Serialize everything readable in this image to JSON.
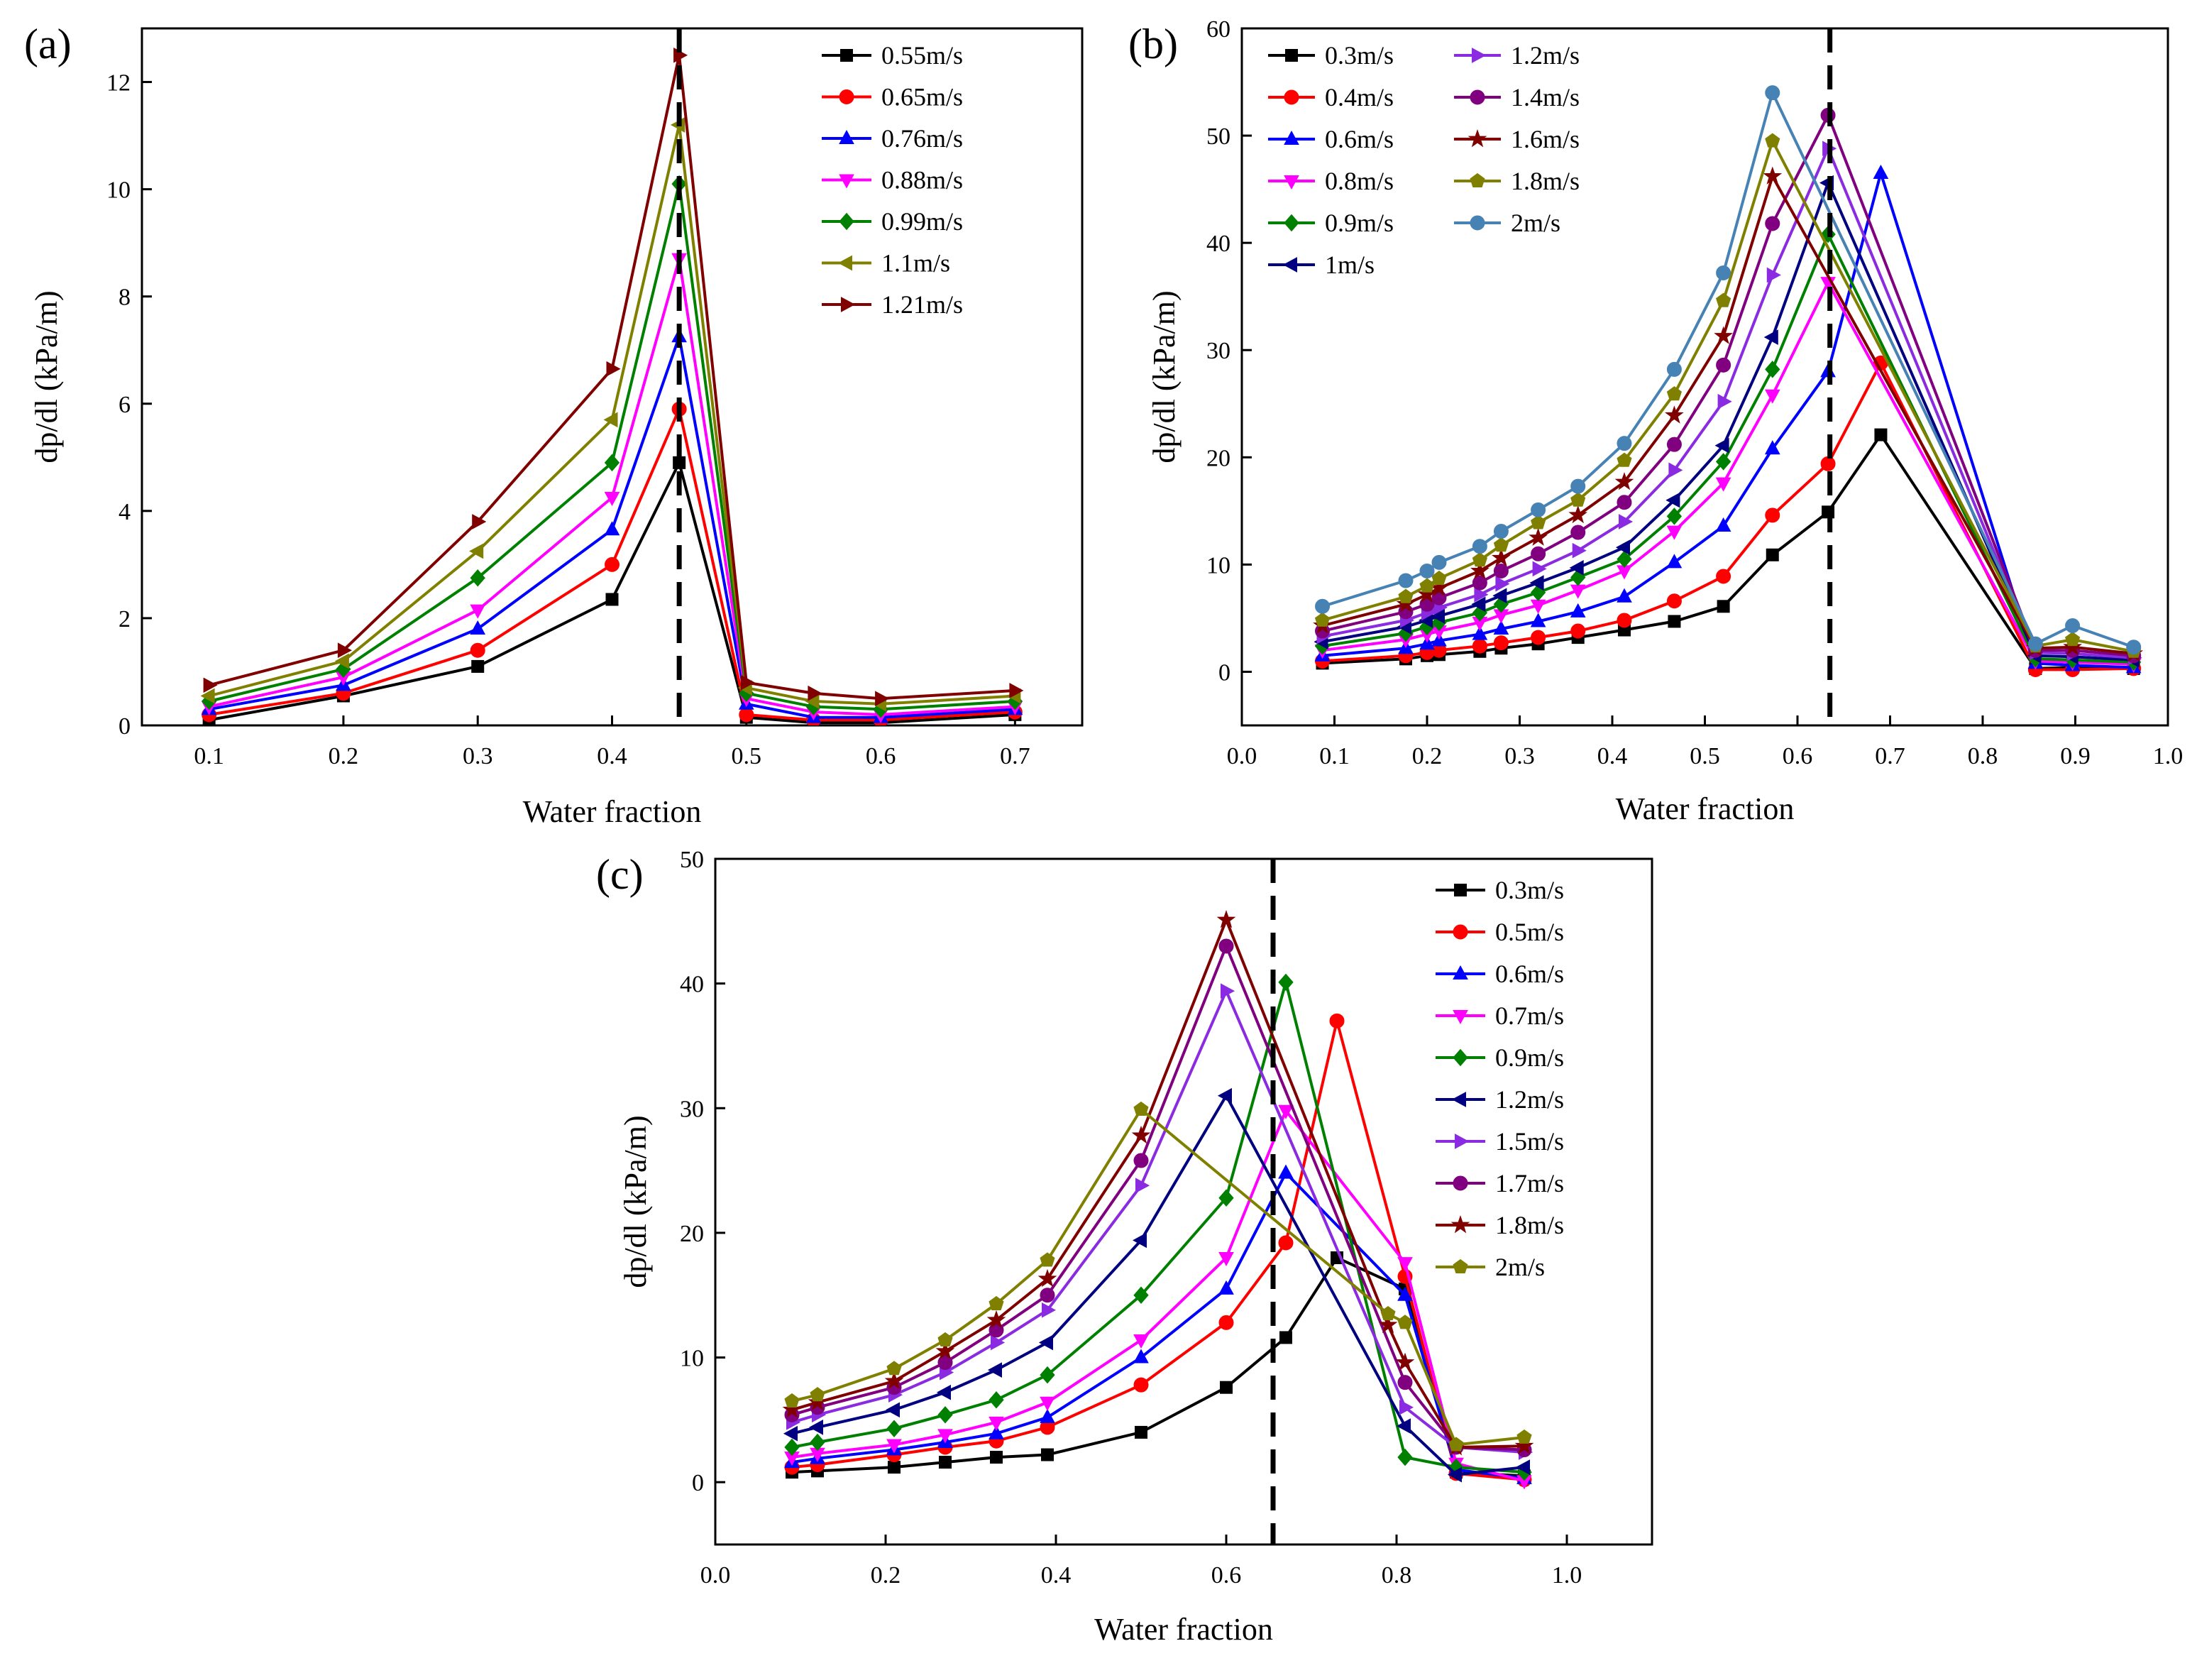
{
  "chart_data": [
    {
      "panel_label": "(a)",
      "type": "line",
      "xlabel": "Water fraction",
      "ylabel": "dp/dl (kPa/m)",
      "xlim": [
        0.05,
        0.75
      ],
      "ylim": [
        0,
        13
      ],
      "xticks": [
        0.1,
        0.2,
        0.3,
        0.4,
        0.5,
        0.6,
        0.7
      ],
      "xtick_labels": [
        "0.1",
        "0.2",
        "0.3",
        "0.4",
        "0.5",
        "0.6",
        "0.7"
      ],
      "yticks": [
        0,
        2,
        4,
        6,
        8,
        10,
        12
      ],
      "ytick_labels": [
        "0",
        "2",
        "4",
        "6",
        "8",
        "10",
        "12"
      ],
      "vline_x": 0.45,
      "legend_position": "top-right",
      "x": [
        0.1,
        0.2,
        0.3,
        0.4,
        0.45,
        0.5,
        0.55,
        0.6,
        0.7
      ],
      "series": [
        {
          "name": "0.55m/s",
          "color": "#000000",
          "marker": "square",
          "values": [
            0.1,
            0.55,
            1.1,
            2.35,
            4.9,
            0.15,
            0.05,
            0.05,
            0.2
          ]
        },
        {
          "name": "0.65m/s",
          "color": "#ff0000",
          "marker": "circle",
          "values": [
            0.2,
            0.6,
            1.4,
            3.0,
            5.9,
            0.2,
            0.1,
            0.1,
            0.25
          ]
        },
        {
          "name": "0.76m/s",
          "color": "#0000ff",
          "marker": "triangle-up",
          "values": [
            0.3,
            0.75,
            1.8,
            3.65,
            7.25,
            0.4,
            0.15,
            0.15,
            0.3
          ]
        },
        {
          "name": "0.88m/s",
          "color": "#ff00ff",
          "marker": "triangle-down",
          "values": [
            0.35,
            0.9,
            2.15,
            4.25,
            8.7,
            0.5,
            0.25,
            0.2,
            0.35
          ]
        },
        {
          "name": "0.99m/s",
          "color": "#008000",
          "marker": "diamond",
          "values": [
            0.45,
            1.05,
            2.75,
            4.9,
            10.1,
            0.6,
            0.35,
            0.3,
            0.45
          ]
        },
        {
          "name": "1.1m/s",
          "color": "#808000",
          "marker": "triangle-left",
          "values": [
            0.55,
            1.2,
            3.25,
            5.7,
            11.2,
            0.7,
            0.45,
            0.4,
            0.55
          ]
        },
        {
          "name": "1.21m/s",
          "color": "#800000",
          "marker": "triangle-right",
          "values": [
            0.75,
            1.4,
            3.8,
            6.65,
            12.5,
            0.8,
            0.6,
            0.5,
            0.65
          ]
        }
      ]
    },
    {
      "panel_label": "(b)",
      "type": "line",
      "xlabel": "Water fraction",
      "ylabel": "dp/dl (kPa/m)",
      "xlim": [
        0.0,
        1.0
      ],
      "ylim": [
        -5,
        60
      ],
      "xticks": [
        0.0,
        0.1,
        0.2,
        0.3,
        0.4,
        0.5,
        0.6,
        0.7,
        0.8,
        0.9,
        1.0
      ],
      "xtick_labels": [
        "0.0",
        "0.1",
        "0.2",
        "0.3",
        "0.4",
        "0.5",
        "0.6",
        "0.7",
        "0.8",
        "0.9",
        "1.0"
      ],
      "yticks": [
        0,
        10,
        20,
        30,
        40,
        50,
        60
      ],
      "ytick_labels": [
        "0",
        "10",
        "20",
        "30",
        "40",
        "50",
        "60"
      ],
      "vline_x": 0.635,
      "legend_position": "top-left",
      "series": [
        {
          "name": "0.3m/s",
          "color": "#000000",
          "marker": "square",
          "x": [
            0.087,
            0.177,
            0.2,
            0.213,
            0.257,
            0.28,
            0.32,
            0.363,
            0.413,
            0.467,
            0.52,
            0.573,
            0.633,
            0.69,
            0.857,
            0.897,
            0.963
          ],
          "values": [
            0.8,
            1.2,
            1.5,
            1.6,
            1.9,
            2.2,
            2.6,
            3.2,
            3.9,
            4.7,
            6.1,
            10.9,
            14.9,
            22.1,
            0.3,
            0.4,
            0.3
          ]
        },
        {
          "name": "0.4m/s",
          "color": "#ff0000",
          "marker": "circle",
          "x": [
            0.087,
            0.177,
            0.2,
            0.213,
            0.257,
            0.28,
            0.32,
            0.363,
            0.413,
            0.467,
            0.52,
            0.573,
            0.633,
            0.69,
            0.857,
            0.897,
            0.963
          ],
          "values": [
            1.0,
            1.5,
            1.8,
            2.0,
            2.4,
            2.7,
            3.2,
            3.8,
            4.8,
            6.6,
            8.9,
            14.6,
            19.4,
            28.8,
            0.2,
            0.2,
            0.3
          ]
        },
        {
          "name": "0.6m/s",
          "color": "#0000ff",
          "marker": "triangle-up",
          "x": [
            0.087,
            0.177,
            0.2,
            0.213,
            0.257,
            0.28,
            0.32,
            0.363,
            0.413,
            0.467,
            0.52,
            0.573,
            0.633,
            0.69,
            0.857,
            0.897,
            0.963
          ],
          "values": [
            1.5,
            2.2,
            2.6,
            2.9,
            3.5,
            4.0,
            4.7,
            5.6,
            7.0,
            10.2,
            13.6,
            20.8,
            28.0,
            46.5,
            0.8,
            0.6,
            0.4
          ]
        },
        {
          "name": "0.8m/s",
          "color": "#ff00ff",
          "marker": "triangle-down",
          "x": [
            0.087,
            0.177,
            0.2,
            0.213,
            0.257,
            0.28,
            0.32,
            0.363,
            0.413,
            0.467,
            0.52,
            0.573,
            0.633,
            0.857,
            0.897,
            0.963
          ],
          "values": [
            2.0,
            3.0,
            3.5,
            3.8,
            4.6,
            5.3,
            6.2,
            7.6,
            9.4,
            13.1,
            17.6,
            25.8,
            36.3,
            1.0,
            0.9,
            0.7
          ]
        },
        {
          "name": "0.9m/s",
          "color": "#008000",
          "marker": "diamond",
          "x": [
            0.087,
            0.177,
            0.2,
            0.213,
            0.257,
            0.28,
            0.32,
            0.363,
            0.413,
            0.467,
            0.52,
            0.573,
            0.633,
            0.857,
            0.897,
            0.963
          ],
          "values": [
            2.4,
            3.6,
            4.2,
            4.6,
            5.5,
            6.3,
            7.4,
            8.8,
            10.5,
            14.5,
            19.6,
            28.2,
            40.8,
            1.2,
            1.1,
            0.9
          ]
        },
        {
          "name": "1m/s",
          "color": "#000080",
          "marker": "triangle-left",
          "x": [
            0.087,
            0.177,
            0.2,
            0.213,
            0.257,
            0.28,
            0.32,
            0.363,
            0.413,
            0.467,
            0.52,
            0.573,
            0.633,
            0.857,
            0.897,
            0.963
          ],
          "values": [
            2.8,
            4.2,
            4.8,
            5.2,
            6.3,
            7.1,
            8.3,
            9.7,
            11.6,
            16.0,
            21.1,
            31.2,
            45.6,
            1.5,
            1.4,
            1.1
          ]
        },
        {
          "name": "1.2m/s",
          "color": "#8a2be2",
          "marker": "triangle-right",
          "x": [
            0.087,
            0.177,
            0.2,
            0.213,
            0.257,
            0.28,
            0.32,
            0.363,
            0.413,
            0.467,
            0.52,
            0.573,
            0.633,
            0.857,
            0.897,
            0.963
          ],
          "values": [
            3.3,
            4.8,
            5.5,
            6.0,
            7.2,
            8.2,
            9.6,
            11.3,
            14.0,
            18.8,
            25.2,
            37.0,
            48.8,
            1.8,
            1.7,
            1.3
          ]
        },
        {
          "name": "1.4m/s",
          "color": "#800080",
          "marker": "circle",
          "x": [
            0.087,
            0.177,
            0.2,
            0.213,
            0.257,
            0.28,
            0.32,
            0.363,
            0.413,
            0.467,
            0.52,
            0.573,
            0.633,
            0.857,
            0.897,
            0.963
          ],
          "values": [
            3.8,
            5.6,
            6.3,
            6.9,
            8.3,
            9.4,
            11.0,
            13.0,
            15.8,
            21.2,
            28.6,
            41.8,
            51.9,
            2.0,
            2.0,
            1.5
          ]
        },
        {
          "name": "1.6m/s",
          "color": "#800000",
          "marker": "star",
          "x": [
            0.087,
            0.177,
            0.2,
            0.213,
            0.257,
            0.28,
            0.32,
            0.363,
            0.413,
            0.467,
            0.52,
            0.573,
            0.857,
            0.897,
            0.963
          ],
          "values": [
            4.3,
            6.3,
            7.2,
            7.8,
            9.4,
            10.6,
            12.5,
            14.6,
            17.7,
            23.9,
            31.3,
            46.2,
            2.2,
            2.3,
            1.7
          ]
        },
        {
          "name": "1.8m/s",
          "color": "#808000",
          "marker": "pentagon",
          "x": [
            0.087,
            0.177,
            0.2,
            0.213,
            0.257,
            0.28,
            0.32,
            0.363,
            0.413,
            0.467,
            0.52,
            0.573,
            0.857,
            0.897,
            0.963
          ],
          "values": [
            4.8,
            7.0,
            8.0,
            8.7,
            10.4,
            11.8,
            13.9,
            16.0,
            19.7,
            25.9,
            34.6,
            49.5,
            2.4,
            3.0,
            1.9
          ]
        },
        {
          "name": "2m/s",
          "color": "#4682b4",
          "marker": "circle",
          "x": [
            0.087,
            0.177,
            0.2,
            0.213,
            0.257,
            0.28,
            0.32,
            0.363,
            0.413,
            0.467,
            0.52,
            0.573,
            0.857,
            0.897,
            0.963
          ],
          "values": [
            6.1,
            8.5,
            9.4,
            10.2,
            11.7,
            13.1,
            15.1,
            17.3,
            21.3,
            28.2,
            37.2,
            54.0,
            2.6,
            4.3,
            2.3
          ]
        }
      ]
    },
    {
      "panel_label": "(c)",
      "type": "line",
      "xlabel": "Water fraction",
      "ylabel": "dp/dl (kPa/m)",
      "xlim": [
        0.0,
        1.1
      ],
      "ylim": [
        -5,
        50
      ],
      "xticks": [
        0.0,
        0.2,
        0.4,
        0.6,
        0.8,
        1.0
      ],
      "xtick_labels": [
        "0.0",
        "0.2",
        "0.4",
        "0.6",
        "0.8",
        "1.0"
      ],
      "yticks": [
        0,
        10,
        20,
        30,
        40,
        50
      ],
      "ytick_labels": [
        "0",
        "10",
        "20",
        "30",
        "40",
        "50"
      ],
      "vline_x": 0.655,
      "legend_position": "top-right",
      "series": [
        {
          "name": "0.3m/s",
          "color": "#000000",
          "marker": "square",
          "x": [
            0.09,
            0.12,
            0.21,
            0.27,
            0.33,
            0.39,
            0.5,
            0.6,
            0.67,
            0.73,
            0.81,
            0.87,
            0.95
          ],
          "values": [
            0.8,
            0.9,
            1.2,
            1.6,
            2.0,
            2.2,
            4.0,
            7.6,
            11.6,
            18.0,
            15.5,
            0.8,
            0.5
          ]
        },
        {
          "name": "0.5m/s",
          "color": "#ff0000",
          "marker": "circle",
          "x": [
            0.09,
            0.12,
            0.21,
            0.27,
            0.33,
            0.39,
            0.5,
            0.6,
            0.67,
            0.73,
            0.81,
            0.87,
            0.95
          ],
          "values": [
            1.2,
            1.4,
            2.2,
            2.8,
            3.3,
            4.4,
            7.8,
            12.8,
            19.2,
            37.0,
            16.5,
            0.7,
            0.2
          ]
        },
        {
          "name": "0.6m/s",
          "color": "#0000ff",
          "marker": "triangle-up",
          "x": [
            0.09,
            0.12,
            0.21,
            0.27,
            0.33,
            0.39,
            0.5,
            0.6,
            0.67,
            0.81,
            0.87,
            0.95
          ],
          "values": [
            1.6,
            1.9,
            2.6,
            3.2,
            3.9,
            5.2,
            10.0,
            15.5,
            24.8,
            15.0,
            1.0,
            0.3
          ]
        },
        {
          "name": "0.7m/s",
          "color": "#ff00ff",
          "marker": "triangle-down",
          "x": [
            0.09,
            0.12,
            0.21,
            0.27,
            0.33,
            0.39,
            0.5,
            0.6,
            0.67,
            0.81,
            0.87,
            0.95
          ],
          "values": [
            2.0,
            2.3,
            3.0,
            3.8,
            4.8,
            6.4,
            11.4,
            18.0,
            29.8,
            17.6,
            1.5,
            0.1
          ]
        },
        {
          "name": "0.9m/s",
          "color": "#008000",
          "marker": "diamond",
          "x": [
            0.09,
            0.12,
            0.21,
            0.27,
            0.33,
            0.39,
            0.5,
            0.6,
            0.67,
            0.81,
            0.87,
            0.95
          ],
          "values": [
            2.8,
            3.2,
            4.3,
            5.4,
            6.6,
            8.6,
            15.0,
            22.8,
            40.1,
            2.0,
            1.2,
            0.8
          ]
        },
        {
          "name": "1.2m/s",
          "color": "#000080",
          "marker": "triangle-left",
          "x": [
            0.09,
            0.12,
            0.21,
            0.27,
            0.33,
            0.39,
            0.5,
            0.6,
            0.81,
            0.87,
            0.95
          ],
          "values": [
            3.9,
            4.4,
            5.8,
            7.2,
            9.0,
            11.2,
            19.4,
            31.0,
            4.5,
            0.6,
            1.2
          ]
        },
        {
          "name": "1.5m/s",
          "color": "#8a2be2",
          "marker": "triangle-right",
          "x": [
            0.09,
            0.12,
            0.21,
            0.27,
            0.33,
            0.39,
            0.5,
            0.6,
            0.81,
            0.87,
            0.95
          ],
          "values": [
            4.8,
            5.4,
            7.0,
            8.8,
            11.2,
            13.8,
            23.8,
            39.4,
            6.0,
            2.8,
            2.4
          ]
        },
        {
          "name": "1.7m/s",
          "color": "#800080",
          "marker": "circle",
          "x": [
            0.09,
            0.12,
            0.21,
            0.27,
            0.33,
            0.39,
            0.5,
            0.6,
            0.81,
            0.87,
            0.95
          ],
          "values": [
            5.4,
            6.0,
            7.6,
            9.6,
            12.2,
            15.0,
            25.8,
            43.0,
            8.0,
            2.8,
            2.6
          ]
        },
        {
          "name": "1.8m/s",
          "color": "#800000",
          "marker": "star",
          "x": [
            0.09,
            0.12,
            0.21,
            0.27,
            0.33,
            0.39,
            0.5,
            0.6,
            0.79,
            0.81,
            0.87,
            0.95
          ],
          "values": [
            5.8,
            6.4,
            8.1,
            10.5,
            13.0,
            16.3,
            27.8,
            45.1,
            12.6,
            9.6,
            2.8,
            2.9
          ]
        },
        {
          "name": "2m/s",
          "color": "#808000",
          "marker": "pentagon",
          "x": [
            0.09,
            0.12,
            0.21,
            0.27,
            0.33,
            0.39,
            0.5,
            0.79,
            0.81,
            0.87,
            0.95
          ],
          "values": [
            6.5,
            7.0,
            9.1,
            11.4,
            14.3,
            17.8,
            29.9,
            13.5,
            12.8,
            3.0,
            3.6
          ]
        }
      ]
    }
  ]
}
